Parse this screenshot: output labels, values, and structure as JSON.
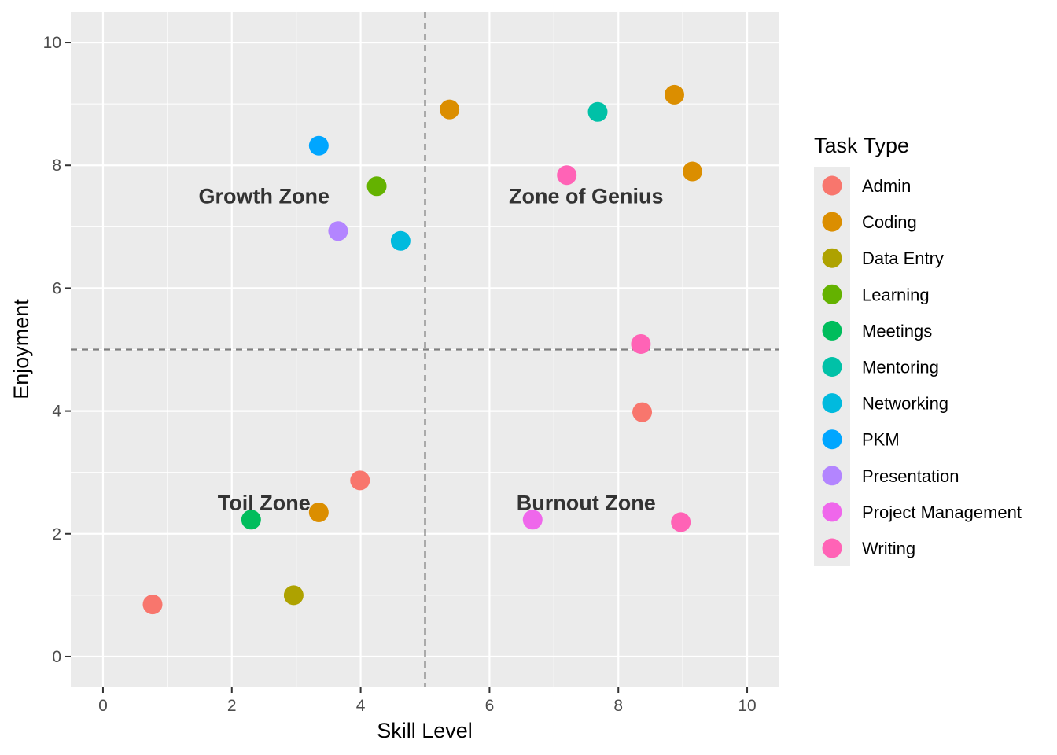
{
  "chart_data": {
    "type": "scatter",
    "xlabel": "Skill Level",
    "ylabel": "Enjoyment",
    "xlim": [
      -0.5,
      10.5
    ],
    "ylim": [
      -0.5,
      10.5
    ],
    "x_ticks": [
      0,
      2,
      4,
      6,
      8,
      10
    ],
    "y_ticks": [
      0,
      2,
      4,
      6,
      8,
      10
    ],
    "grid": true,
    "background": "#ebebeb",
    "reference_lines": [
      {
        "axis": "x",
        "value": 5,
        "style": "dashed",
        "color": "#7f7f7f"
      },
      {
        "axis": "y",
        "value": 5,
        "style": "dashed",
        "color": "#7f7f7f"
      }
    ],
    "annotations": [
      {
        "text": "Growth Zone",
        "x": 2.5,
        "y": 7.5
      },
      {
        "text": "Zone of Genius",
        "x": 7.5,
        "y": 7.5
      },
      {
        "text": "Toil Zone",
        "x": 2.5,
        "y": 2.5
      },
      {
        "text": "Burnout Zone",
        "x": 7.5,
        "y": 2.5
      }
    ],
    "legend": {
      "title": "Task Type",
      "placement": "right",
      "entries": [
        {
          "name": "Admin",
          "color": "#F8766D"
        },
        {
          "name": "Coding",
          "color": "#DB8E00"
        },
        {
          "name": "Data Entry",
          "color": "#AEA200"
        },
        {
          "name": "Learning",
          "color": "#64B200"
        },
        {
          "name": "Meetings",
          "color": "#00BD5C"
        },
        {
          "name": "Mentoring",
          "color": "#00C1A7"
        },
        {
          "name": "Networking",
          "color": "#00BADE"
        },
        {
          "name": "PKM",
          "color": "#00A6FF"
        },
        {
          "name": "Presentation",
          "color": "#B385FF"
        },
        {
          "name": "Project Management",
          "color": "#EF67EB"
        },
        {
          "name": "Writing",
          "color": "#FF63B6"
        }
      ]
    },
    "points": [
      {
        "x": 0.77,
        "y": 0.85,
        "group": "Admin"
      },
      {
        "x": 3.99,
        "y": 2.87,
        "group": "Admin"
      },
      {
        "x": 8.37,
        "y": 3.98,
        "group": "Admin"
      },
      {
        "x": 5.38,
        "y": 8.91,
        "group": "Coding"
      },
      {
        "x": 3.35,
        "y": 2.35,
        "group": "Coding"
      },
      {
        "x": 8.87,
        "y": 9.15,
        "group": "Coding"
      },
      {
        "x": 9.15,
        "y": 7.9,
        "group": "Coding"
      },
      {
        "x": 2.96,
        "y": 1.0,
        "group": "Data Entry"
      },
      {
        "x": 4.25,
        "y": 7.66,
        "group": "Learning"
      },
      {
        "x": 2.3,
        "y": 2.23,
        "group": "Meetings"
      },
      {
        "x": 7.68,
        "y": 8.87,
        "group": "Mentoring"
      },
      {
        "x": 4.62,
        "y": 6.77,
        "group": "Networking"
      },
      {
        "x": 3.35,
        "y": 8.32,
        "group": "PKM"
      },
      {
        "x": 3.65,
        "y": 6.93,
        "group": "Presentation"
      },
      {
        "x": 6.67,
        "y": 2.23,
        "group": "Project Management"
      },
      {
        "x": 7.2,
        "y": 7.84,
        "group": "Writing"
      },
      {
        "x": 8.35,
        "y": 5.09,
        "group": "Writing"
      },
      {
        "x": 8.97,
        "y": 2.19,
        "group": "Writing"
      }
    ]
  }
}
